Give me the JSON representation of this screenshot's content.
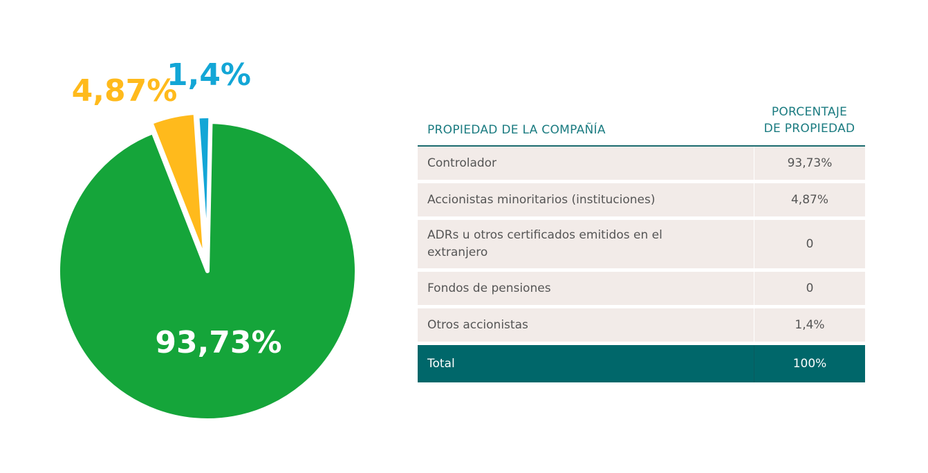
{
  "chart_data": {
    "type": "pie",
    "slices": [
      {
        "label": "Controlador",
        "value": 93.73,
        "display": "93,73%",
        "color": "#15a53a"
      },
      {
        "label": "Accionistas minoritarios (instituciones)",
        "value": 4.87,
        "display": "4,87%",
        "color": "#ffba1c"
      },
      {
        "label": "Otros accionistas",
        "value": 1.4,
        "display": "1,4%",
        "color": "#13a6d6"
      }
    ]
  },
  "table": {
    "header": {
      "name": "PROPIEDAD DE LA COMPAÑÍA",
      "pct_line1": "PORCENTAJE",
      "pct_line2": "DE PROPIEDAD"
    },
    "rows": [
      {
        "name": "Controlador",
        "pct": "93,73%"
      },
      {
        "name": "Accionistas minoritarios (instituciones)",
        "pct": "4,87%"
      },
      {
        "name": "ADRs u otros certificados emitidos en el",
        "name2": "extranjero",
        "pct": "0"
      },
      {
        "name": "Fondos de pensiones",
        "pct": "0"
      },
      {
        "name": "Otros accionistas",
        "pct": "1,4%"
      }
    ],
    "total": {
      "name": "Total",
      "pct": "100%"
    }
  },
  "colors": {
    "header_text": "#1a7b80",
    "row_bg": "#f2ebe8",
    "total_bg": "#00676a"
  }
}
